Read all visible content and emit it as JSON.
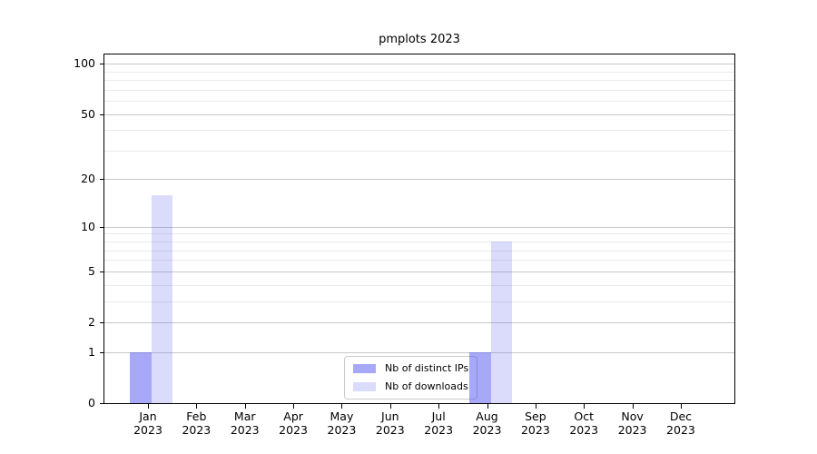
{
  "chart": {
    "title": "pmplots 2023"
  },
  "chart_data": {
    "type": "bar",
    "title": "pmplots 2023",
    "categories": [
      "Jan",
      "Feb",
      "Mar",
      "Apr",
      "May",
      "Jun",
      "Jul",
      "Aug",
      "Sep",
      "Oct",
      "Nov",
      "Dec"
    ],
    "year_label": "2023",
    "series": [
      {
        "name": "Nb of distinct IPs",
        "values": [
          1,
          0,
          0,
          0,
          0,
          0,
          0,
          1,
          0,
          0,
          0,
          0
        ],
        "color": "rgba(62,62,239,0.45)",
        "color_on_white": "#a8a8f8"
      },
      {
        "name": "Nb of downloads",
        "values": [
          16,
          0,
          0,
          0,
          0,
          0,
          0,
          8,
          0,
          0,
          0,
          0
        ],
        "color": "rgba(62,62,239,0.19)",
        "color_on_white": "#dbdbf8"
      }
    ],
    "yscale": "log1p",
    "ylim": [
      0,
      115
    ],
    "y_major_ticks": [
      0,
      1,
      2,
      5,
      10,
      20,
      50,
      100
    ],
    "y_minor_ticks": [
      3,
      4,
      6,
      7,
      8,
      9,
      30,
      40,
      60,
      70,
      80,
      90
    ],
    "grid": "horizontal major+minor",
    "legend_position": "lower center",
    "xlabel": "",
    "ylabel": ""
  },
  "colors": {
    "grid_major": "#c9c9c9",
    "grid_minor": "#ebebeb",
    "spine": "#000000",
    "text": "#000000",
    "legend_border": "#cccccc",
    "legend_background": "rgba(255,255,255,0.8)"
  }
}
